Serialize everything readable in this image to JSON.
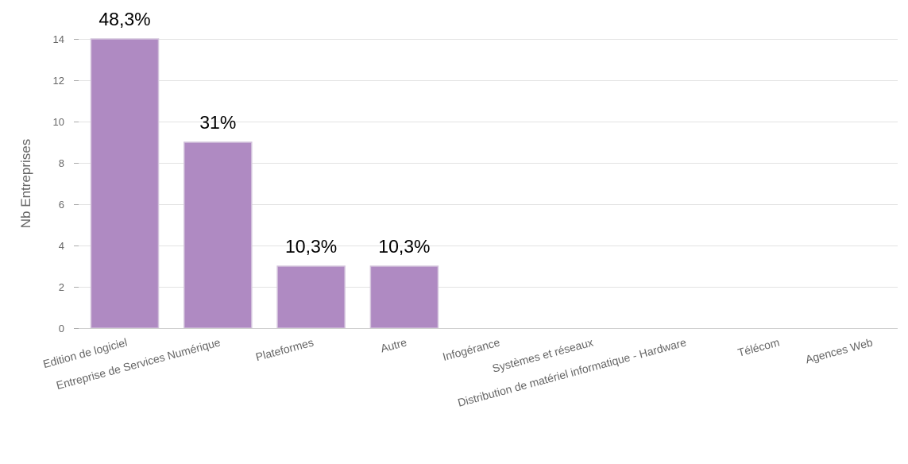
{
  "chart_data": {
    "type": "bar",
    "title": "",
    "xlabel": "",
    "ylabel": "Nb Entreprises",
    "ylim": [
      0,
      14
    ],
    "y_ticks": [
      0,
      2,
      4,
      6,
      8,
      10,
      12,
      14
    ],
    "grid": true,
    "legend": "none",
    "bar_color": "#af8ac2",
    "categories": [
      "Edition de logiciel",
      "Entreprise de Services Numérique",
      "Plateformes",
      "Autre",
      "Infogérance",
      "Systèmes et réseaux",
      "Distribution de matériel informatique - Hardware",
      "Télécom",
      "Agences Web"
    ],
    "values": [
      14,
      9,
      3,
      3,
      0,
      0,
      0,
      0,
      0
    ],
    "data_labels": [
      "48,3%",
      "31%",
      "10,3%",
      "10,3%",
      "",
      "",
      "",
      "",
      ""
    ]
  }
}
